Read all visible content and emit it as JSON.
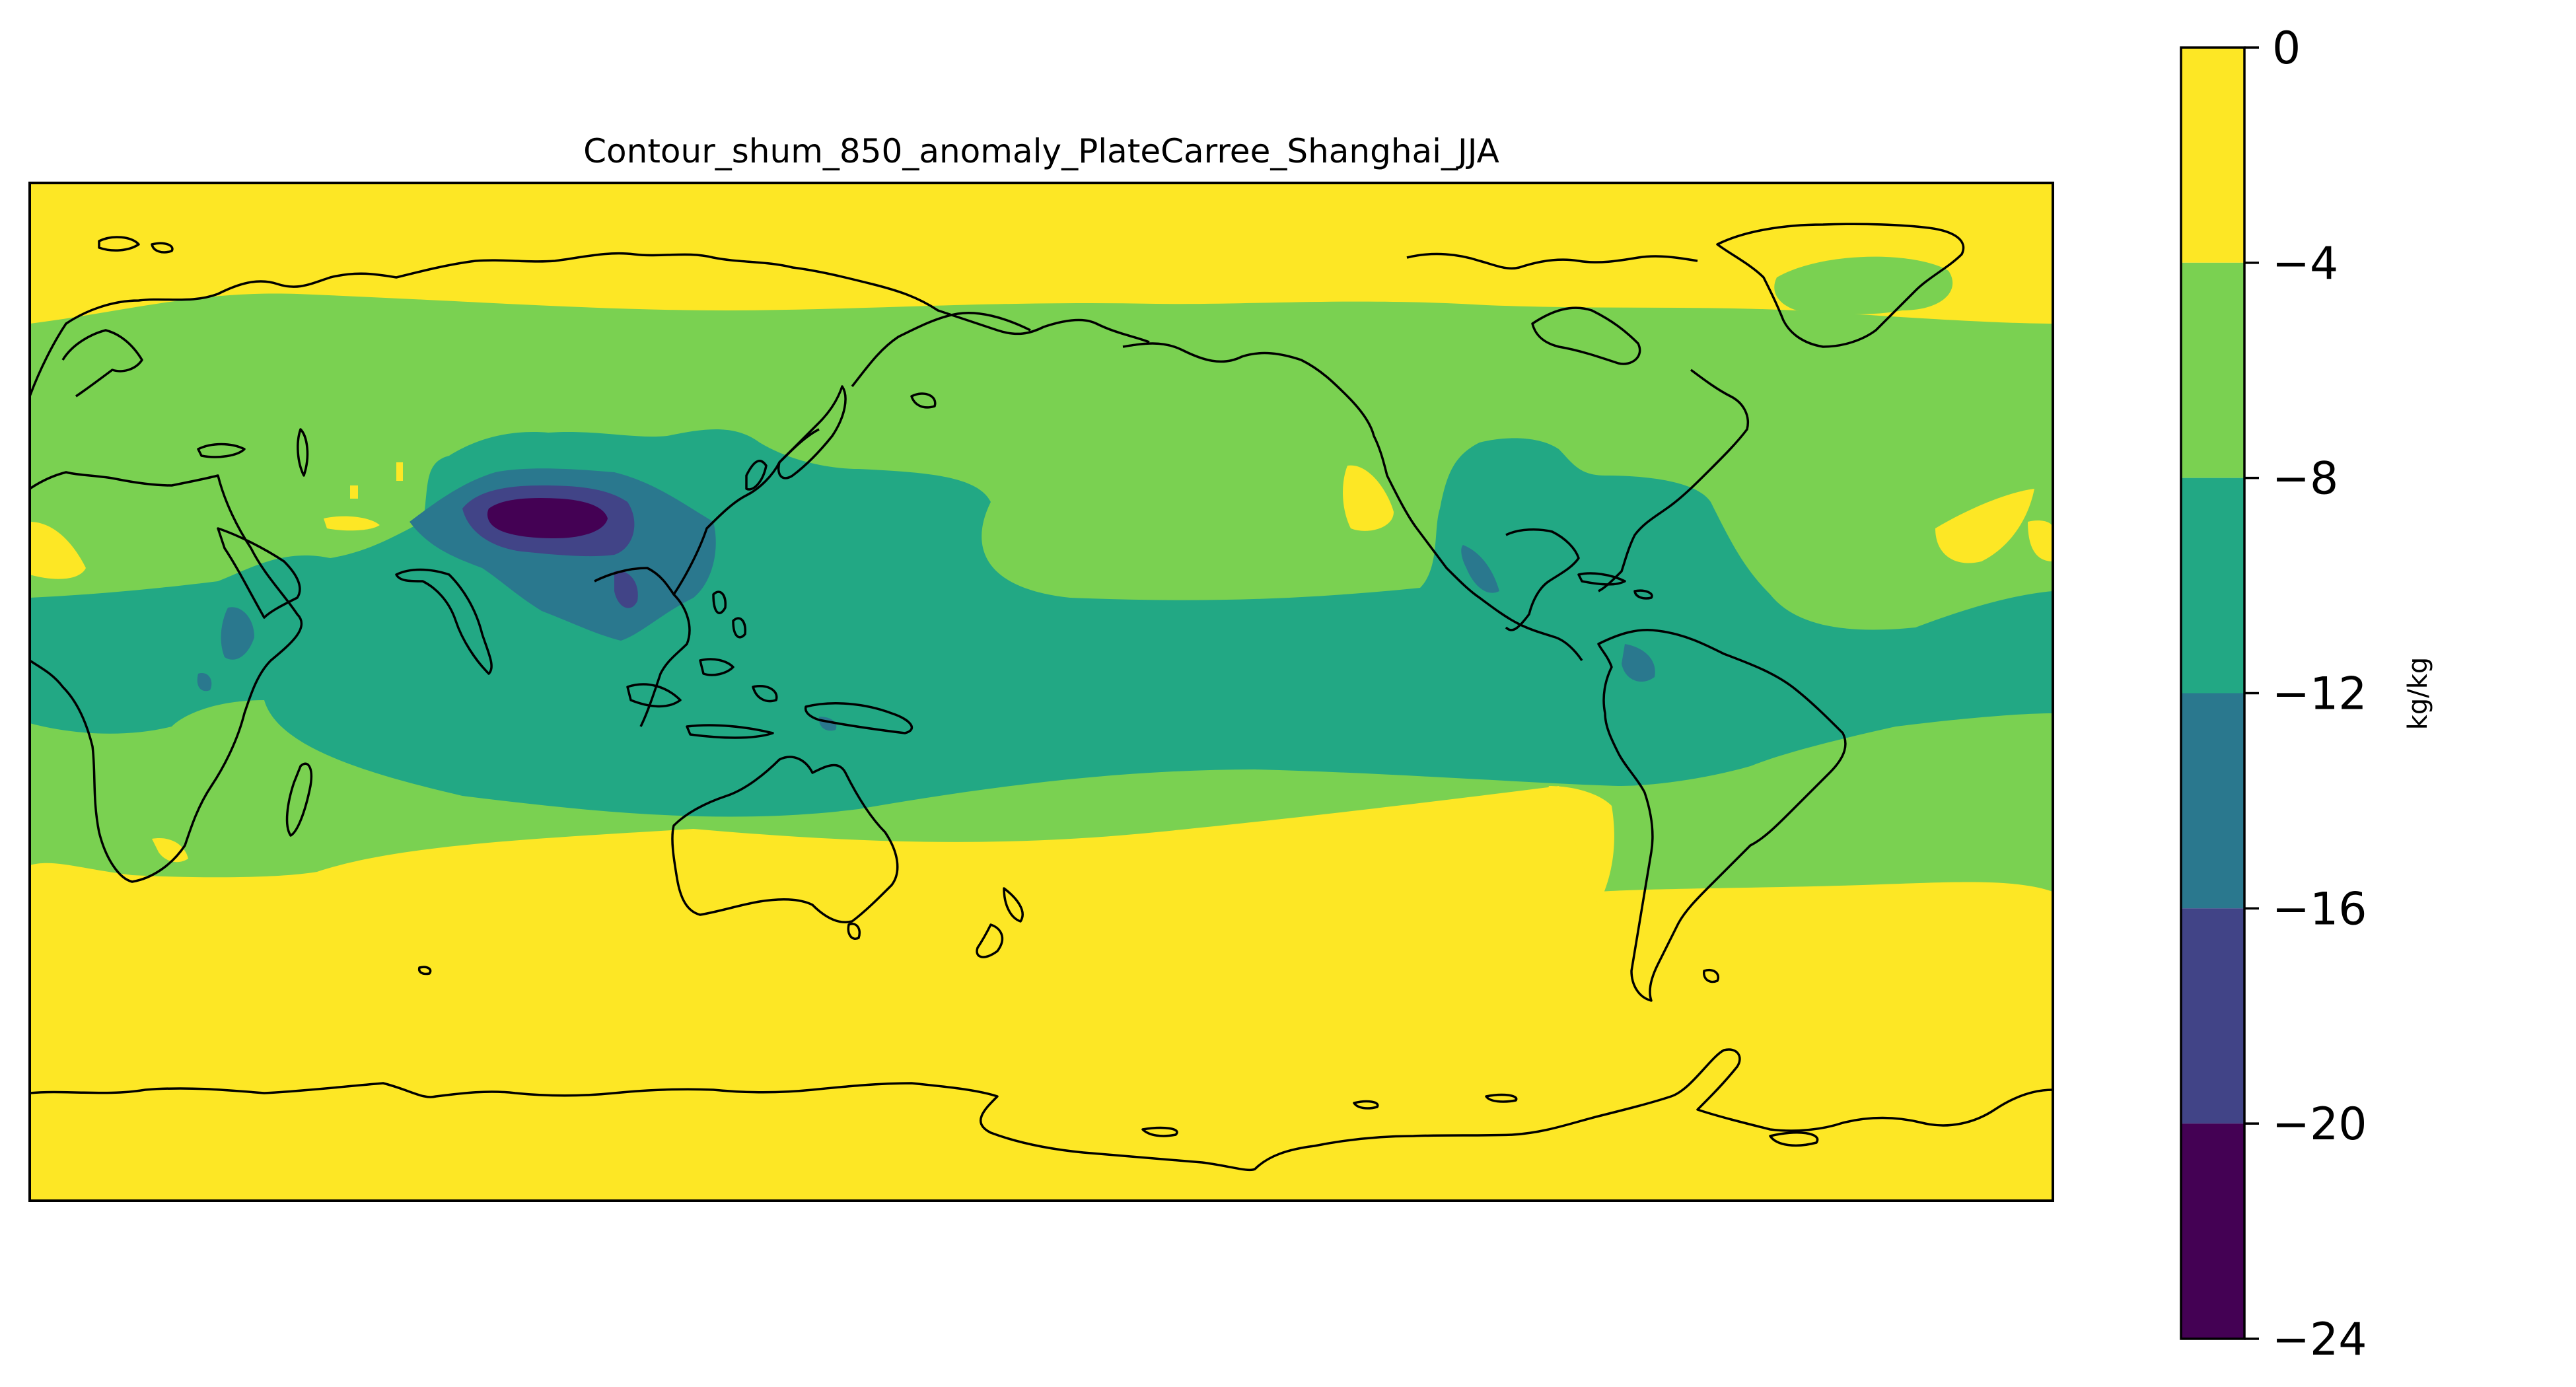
{
  "title": "Contour_shum_850_anomaly_PlateCarree_Shanghai_JJA",
  "colorbar": {
    "unit": "kg/kg",
    "levels": [
      0,
      -4,
      -8,
      -12,
      -16,
      -20,
      -24
    ],
    "tick_labels": [
      "0",
      "−4",
      "−8",
      "−12",
      "−16",
      "−20",
      "−24"
    ],
    "bands": [
      {
        "from": -4,
        "to": 0,
        "color": "#fde725"
      },
      {
        "from": -8,
        "to": -4,
        "color": "#7ad151"
      },
      {
        "from": -12,
        "to": -8,
        "color": "#22a884"
      },
      {
        "from": -16,
        "to": -12,
        "color": "#2a788e"
      },
      {
        "from": -20,
        "to": -16,
        "color": "#414487"
      },
      {
        "from": -24,
        "to": -20,
        "color": "#440154"
      }
    ]
  },
  "map": {
    "projection": "PlateCarree",
    "central_longitude": 180,
    "variable": "specific humidity anomaly at 850 hPa",
    "season": "JJA",
    "coastline_color": "#000000"
  }
}
